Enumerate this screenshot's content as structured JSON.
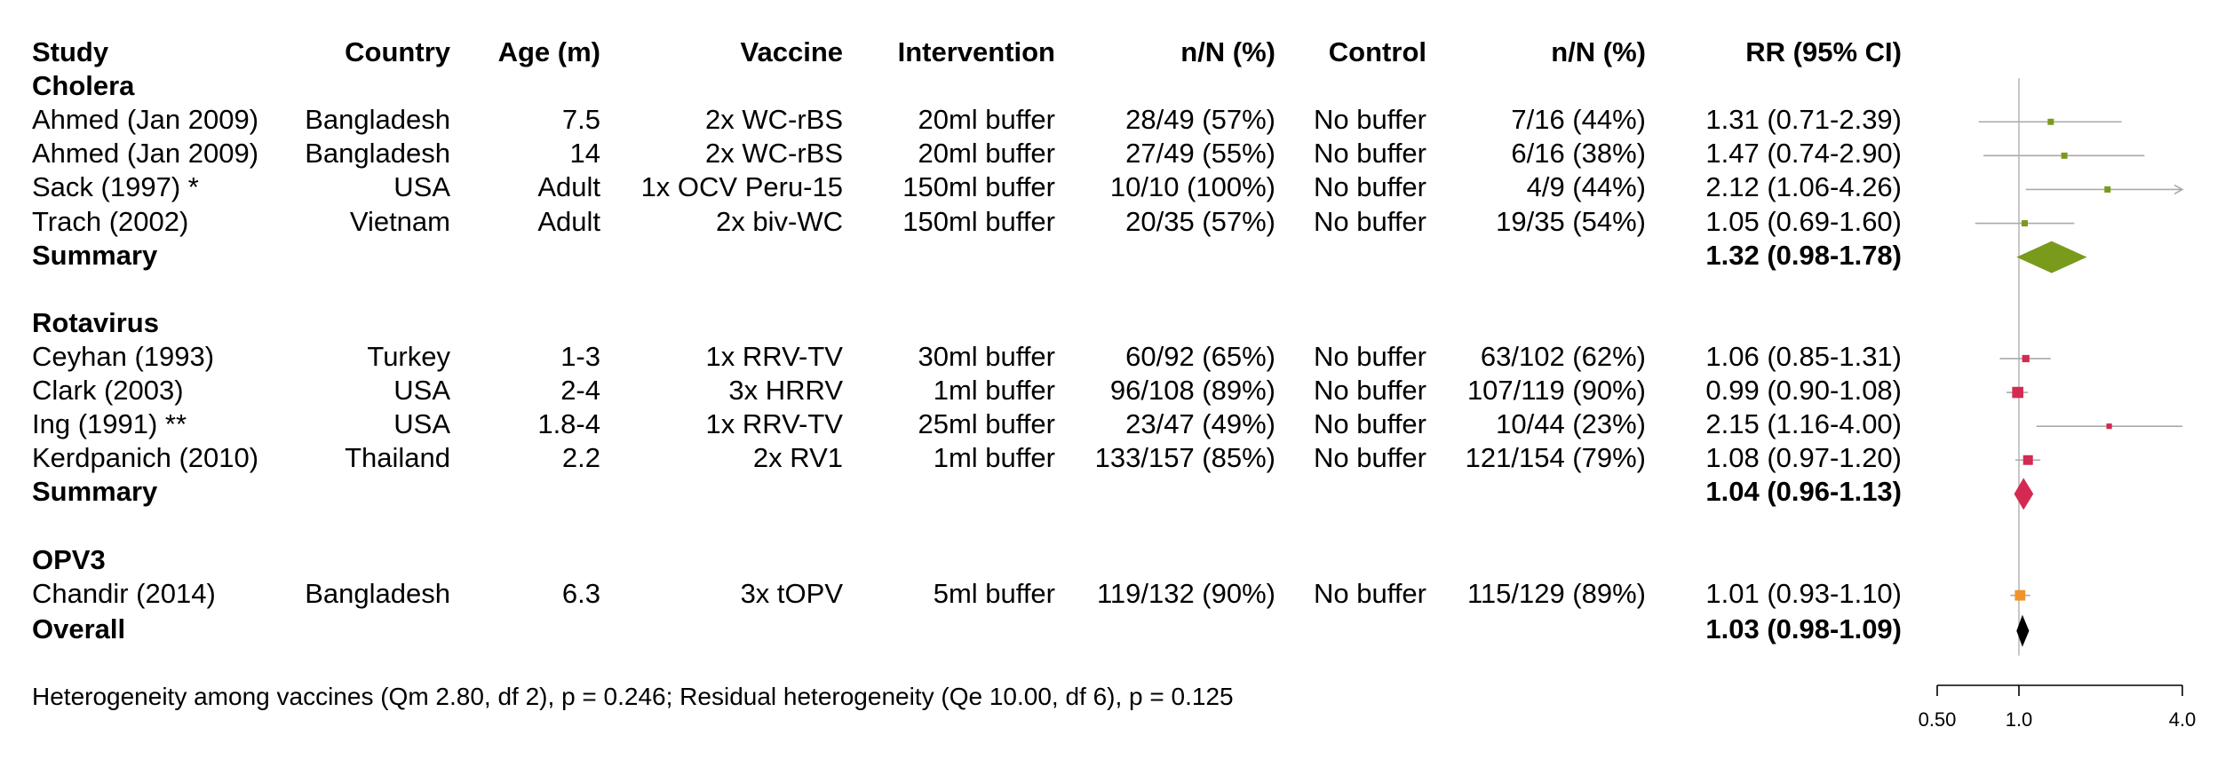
{
  "chart_data": {
    "type": "forest",
    "columns": [
      "Study",
      "Country",
      "Age (m)",
      "Vaccine",
      "Intervention",
      "n/N (%)",
      "Control",
      "n/N (%)",
      "RR (95% CI)"
    ],
    "groups": [
      {
        "name": "Cholera",
        "color": "#7a9a1c",
        "studies": [
          {
            "study": "Ahmed (Jan 2009)",
            "country": "Bangladesh",
            "age": "7.5",
            "vaccine": "2x WC-rBS",
            "intervention": "20ml buffer",
            "int_nN": "28/49 (57%)",
            "control": "No buffer",
            "ctl_nN": "7/16 (44%)",
            "rr_text": "1.31 (0.71-2.39)",
            "rr": 1.31,
            "lo": 0.71,
            "hi": 2.39,
            "weight": 1
          },
          {
            "study": "Ahmed (Jan 2009)",
            "country": "Bangladesh",
            "age": "14",
            "vaccine": "2x WC-rBS",
            "intervention": "20ml buffer",
            "int_nN": "27/49 (55%)",
            "control": "No buffer",
            "ctl_nN": "6/16 (38%)",
            "rr_text": "1.47 (0.74-2.90)",
            "rr": 1.47,
            "lo": 0.74,
            "hi": 2.9,
            "weight": 1
          },
          {
            "study": "Sack (1997) *",
            "country": "USA",
            "age": "Adult",
            "vaccine": "1x OCV Peru-15",
            "intervention": "150ml buffer",
            "int_nN": "10/10 (100%)",
            "control": "No buffer",
            "ctl_nN": "4/9 (44%)",
            "rr_text": "2.12 (1.06-4.26)",
            "rr": 2.12,
            "lo": 1.06,
            "hi": 4.26,
            "weight": 1
          },
          {
            "study": "Trach (2002)",
            "country": "Vietnam",
            "age": "Adult",
            "vaccine": "2x biv-WC",
            "intervention": "150ml buffer",
            "int_nN": "20/35 (57%)",
            "control": "No buffer",
            "ctl_nN": "19/35 (54%)",
            "rr_text": "1.05 (0.69-1.60)",
            "rr": 1.05,
            "lo": 0.69,
            "hi": 1.6,
            "weight": 1
          }
        ],
        "summary": {
          "label": "Summary",
          "rr_text": "1.32 (0.98-1.78)",
          "rr": 1.32,
          "lo": 0.98,
          "hi": 1.78
        }
      },
      {
        "name": "Rotavirus",
        "color": "#d42a52",
        "studies": [
          {
            "study": "Ceyhan (1993)",
            "country": "Turkey",
            "age": "1-3",
            "vaccine": "1x RRV-TV",
            "intervention": "30ml buffer",
            "int_nN": "60/92 (65%)",
            "control": "No buffer",
            "ctl_nN": "63/102 (62%)",
            "rr_text": "1.06 (0.85-1.31)",
            "rr": 1.06,
            "lo": 0.85,
            "hi": 1.31,
            "weight": 1.3
          },
          {
            "study": "Clark (2003)",
            "country": "USA",
            "age": "2-4",
            "vaccine": "3x HRRV",
            "intervention": "1ml buffer",
            "int_nN": "96/108 (89%)",
            "control": "No buffer",
            "ctl_nN": "107/119 (90%)",
            "rr_text": "0.99 (0.90-1.08)",
            "rr": 0.99,
            "lo": 0.9,
            "hi": 1.08,
            "weight": 2.4
          },
          {
            "study": "Ing (1991) **",
            "country": "USA",
            "age": "1.8-4",
            "vaccine": "1x RRV-TV",
            "intervention": "25ml buffer",
            "int_nN": "23/47 (49%)",
            "control": "No buffer",
            "ctl_nN": "10/44 (23%)",
            "rr_text": "2.15 (1.16-4.00)",
            "rr": 2.15,
            "lo": 1.16,
            "hi": 4.0,
            "weight": 0.8
          },
          {
            "study": "Kerdpanich (2010)",
            "country": "Thailand",
            "age": "2.2",
            "vaccine": "2x RV1",
            "intervention": "1ml buffer",
            "int_nN": "133/157 (85%)",
            "control": "No buffer",
            "ctl_nN": "121/154 (79%)",
            "rr_text": "1.08 (0.97-1.20)",
            "rr": 1.08,
            "lo": 0.97,
            "hi": 1.2,
            "weight": 2
          }
        ],
        "summary": {
          "label": "Summary",
          "rr_text": "1.04 (0.96-1.13)",
          "rr": 1.04,
          "lo": 0.96,
          "hi": 1.13
        }
      },
      {
        "name": "OPV3",
        "color": "#f0932b",
        "studies": [
          {
            "study": "Chandir (2014)",
            "country": "Bangladesh",
            "age": "6.3",
            "vaccine": "3x tOPV",
            "intervention": "5ml buffer",
            "int_nN": "119/132 (90%)",
            "control": "No buffer",
            "ctl_nN": "115/129 (89%)",
            "rr_text": "1.01 (0.93-1.10)",
            "rr": 1.01,
            "lo": 0.93,
            "hi": 1.1,
            "weight": 2.2
          }
        ],
        "summary": null
      }
    ],
    "overall": {
      "label": "Overall",
      "rr_text": "1.03 (0.98-1.09)",
      "rr": 1.03,
      "lo": 0.98,
      "hi": 1.09
    },
    "footnote": "Heterogeneity among vaccines (Qm 2.80, df 2), p = 0.246; Residual heterogeneity (Qe 10.00, df 6), p = 0.125",
    "x_axis": {
      "scale": "log",
      "range": [
        0.5,
        4.0
      ],
      "ticks": [
        0.5,
        1.0,
        4.0
      ],
      "tick_labels": [
        "0.50",
        "1.0",
        "4.0"
      ],
      "reference": 1.0
    },
    "overall_color": "#000000",
    "line_color": "#aaaaaa"
  }
}
